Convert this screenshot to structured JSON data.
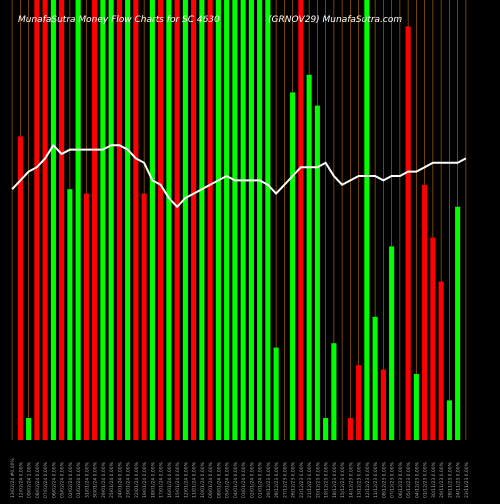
{
  "header": {
    "left_title": "MunafaSutra Money Flow Charts for SC 4630",
    "right_title": "(GRNOV29) MunafaSutra.com"
  },
  "colors": {
    "background": "#000000",
    "up_bar": "#00ff00",
    "down_bar": "#ff0000",
    "price_line": "#ffffff",
    "grid": "#c07000",
    "label_text": "#aaaaaa",
    "title_text": "#ffffff"
  },
  "chart_data": {
    "type": "bar",
    "title": "",
    "xlabel": "",
    "ylabel": "",
    "grid": true,
    "ylim": [
      0,
      100
    ],
    "categories": [
      "13/02/24 #0.00%",
      "12/02/24 0.00%",
      "09/02/24 1.00%",
      "08/02/24 0.00%",
      "07/02/24 0.00%",
      "06/02/24 0.00%",
      "05/02/24 0.00%",
      "02/02/24 0.00%",
      "01/02/24 0.00%",
      "31/01/24 0.00%",
      "30/01/24 0.00%",
      "29/01/24 0.00%",
      "25/01/24 0.00%",
      "24/01/24 0.00%",
      "23/01/24 0.00%",
      "22/01/24 0.00%",
      "19/01/24 0.00%",
      "18/01/24 0.00%",
      "17/01/24 0.00%",
      "16/01/24 0.00%",
      "15/01/24 0.00%",
      "12/01/24 0.00%",
      "11/01/24 0.00%",
      "10/01/24 0.00%",
      "09/01/24 0.00%",
      "08/01/24 0.00%",
      "05/01/24 0.00%",
      "04/01/24 0.00%",
      "03/01/24 0.00%",
      "02/01/24 0.00%",
      "01/01/24 0.00%",
      "29/12/23 0.00%",
      "28/12/23 0.00%",
      "27/12/23 0.00%",
      "26/12/23 0.00%",
      "22/12/23 0.00%",
      "21/12/23 0.00%",
      "20/12/23 0.00%",
      "19/12/23 0.00%",
      "18/12/23 0.00%",
      "15/12/23 0.00%",
      "14/12/23 0.00%",
      "13/12/23 0.00%",
      "12/12/23 0.00%",
      "11/12/23 0.00%",
      "08/12/23 0.00%",
      "07/12/23 0.00%",
      "06/12/23 0.00%",
      "05/12/23 0.00%",
      "04/12/23 0.00%",
      "01/12/23 0.00%",
      "30/11/23 0.00%",
      "29/11/23 0.00%",
      "28/11/23 0.00%",
      "24/11/23 0.00%",
      "23/11/23 0.00%"
    ],
    "bar_series": [
      {
        "values": [
          0,
          0
        ],
        "colors": []
      }
    ],
    "bars": [
      {
        "value": 0,
        "dir": "none"
      },
      {
        "value": 69,
        "dir": "down"
      },
      {
        "value": 5,
        "dir": "up"
      },
      {
        "value": 100,
        "dir": "down"
      },
      {
        "value": 100,
        "dir": "down"
      },
      {
        "value": 100,
        "dir": "up"
      },
      {
        "value": 100,
        "dir": "down"
      },
      {
        "value": 57,
        "dir": "up"
      },
      {
        "value": 100,
        "dir": "up"
      },
      {
        "value": 56,
        "dir": "down"
      },
      {
        "value": 100,
        "dir": "down"
      },
      {
        "value": 100,
        "dir": "up"
      },
      {
        "value": 100,
        "dir": "up"
      },
      {
        "value": 100,
        "dir": "down"
      },
      {
        "value": 100,
        "dir": "up"
      },
      {
        "value": 100,
        "dir": "down"
      },
      {
        "value": 56,
        "dir": "down"
      },
      {
        "value": 100,
        "dir": "up"
      },
      {
        "value": 100,
        "dir": "down"
      },
      {
        "value": 100,
        "dir": "up"
      },
      {
        "value": 100,
        "dir": "down"
      },
      {
        "value": 100,
        "dir": "up"
      },
      {
        "value": 100,
        "dir": "down"
      },
      {
        "value": 100,
        "dir": "up"
      },
      {
        "value": 100,
        "dir": "down"
      },
      {
        "value": 100,
        "dir": "up"
      },
      {
        "value": 100,
        "dir": "up"
      },
      {
        "value": 100,
        "dir": "up"
      },
      {
        "value": 100,
        "dir": "up"
      },
      {
        "value": 100,
        "dir": "up"
      },
      {
        "value": 100,
        "dir": "up"
      },
      {
        "value": 100,
        "dir": "up"
      },
      {
        "value": 21,
        "dir": "up"
      },
      {
        "value": 0,
        "dir": "none"
      },
      {
        "value": 79,
        "dir": "up"
      },
      {
        "value": 100,
        "dir": "down"
      },
      {
        "value": 83,
        "dir": "up"
      },
      {
        "value": 76,
        "dir": "up"
      },
      {
        "value": 5,
        "dir": "up"
      },
      {
        "value": 22,
        "dir": "up"
      },
      {
        "value": 0,
        "dir": "none"
      },
      {
        "value": 5,
        "dir": "down"
      },
      {
        "value": 17,
        "dir": "down"
      },
      {
        "value": 100,
        "dir": "up"
      },
      {
        "value": 28,
        "dir": "up"
      },
      {
        "value": 16,
        "dir": "down"
      },
      {
        "value": 44,
        "dir": "up"
      },
      {
        "value": 0,
        "dir": "none"
      },
      {
        "value": 94,
        "dir": "down"
      },
      {
        "value": 15,
        "dir": "up"
      },
      {
        "value": 58,
        "dir": "down"
      },
      {
        "value": 46,
        "dir": "down"
      },
      {
        "value": 36,
        "dir": "down"
      },
      {
        "value": 9,
        "dir": "up"
      },
      {
        "value": 53,
        "dir": "up"
      },
      {
        "value": 0,
        "dir": "none"
      }
    ],
    "price_line": [
      57,
      59,
      61,
      62,
      64,
      67,
      65,
      66,
      66,
      66,
      66,
      66,
      67,
      67,
      66,
      64,
      63,
      59,
      58,
      55,
      53,
      55,
      56,
      57,
      58,
      59,
      60,
      59,
      59,
      59,
      59,
      58,
      56,
      58,
      60,
      62,
      62,
      62,
      63,
      60,
      58,
      59,
      60,
      60,
      60,
      59,
      60,
      60,
      61,
      61,
      62,
      63,
      63,
      63,
      63,
      64
    ]
  }
}
